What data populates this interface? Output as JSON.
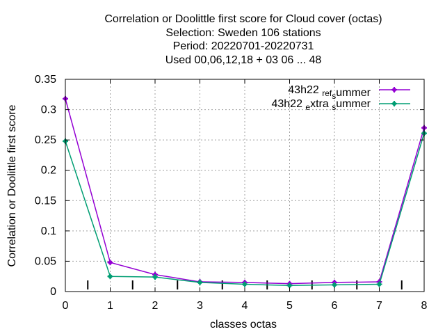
{
  "chart_data": {
    "type": "line",
    "title_lines": [
      "Correlation or Doolittle first score  for Cloud cover (octas)",
      "Selection: Sweden    106 stations",
      "Period: 20220701-20220731",
      "Used  00,06,12,18  + 03 06 ... 48"
    ],
    "xlabel": "classes octas",
    "ylabel": "Correlation or Doolittle first score",
    "x": [
      0,
      1,
      2,
      3,
      4,
      5,
      6,
      7,
      8
    ],
    "xlim": [
      0,
      8
    ],
    "ylim": [
      0,
      0.35
    ],
    "x_ticks": [
      "0",
      "1",
      "2",
      "3",
      "4",
      "5",
      "6",
      "7",
      "8"
    ],
    "y_ticks": [
      "0",
      "0.05",
      "0.1",
      "0.15",
      "0.2",
      "0.25",
      "0.3",
      "0.35"
    ],
    "grid": true,
    "legend_position": "top-right",
    "series": [
      {
        "name": "43h22_ref_summer",
        "legend_parts": [
          "43h22 ",
          "ref",
          "s",
          "ummer"
        ],
        "color": "#9400d3",
        "values": [
          0.318,
          0.048,
          0.028,
          0.016,
          0.015,
          0.013,
          0.015,
          0.016,
          0.27
        ]
      },
      {
        "name": "43h22_extra_summer",
        "legend_parts": [
          "43h22 ",
          "e",
          "xtra ",
          "s",
          "ummer"
        ],
        "color": "#009e73",
        "values": [
          0.248,
          0.025,
          0.024,
          0.015,
          0.012,
          0.01,
          0.011,
          0.012,
          0.261
        ]
      }
    ],
    "minor_markers_x": [
      0.5,
      1.5,
      2.5,
      3.5,
      4.5,
      5.5,
      6.5,
      7.5
    ]
  }
}
